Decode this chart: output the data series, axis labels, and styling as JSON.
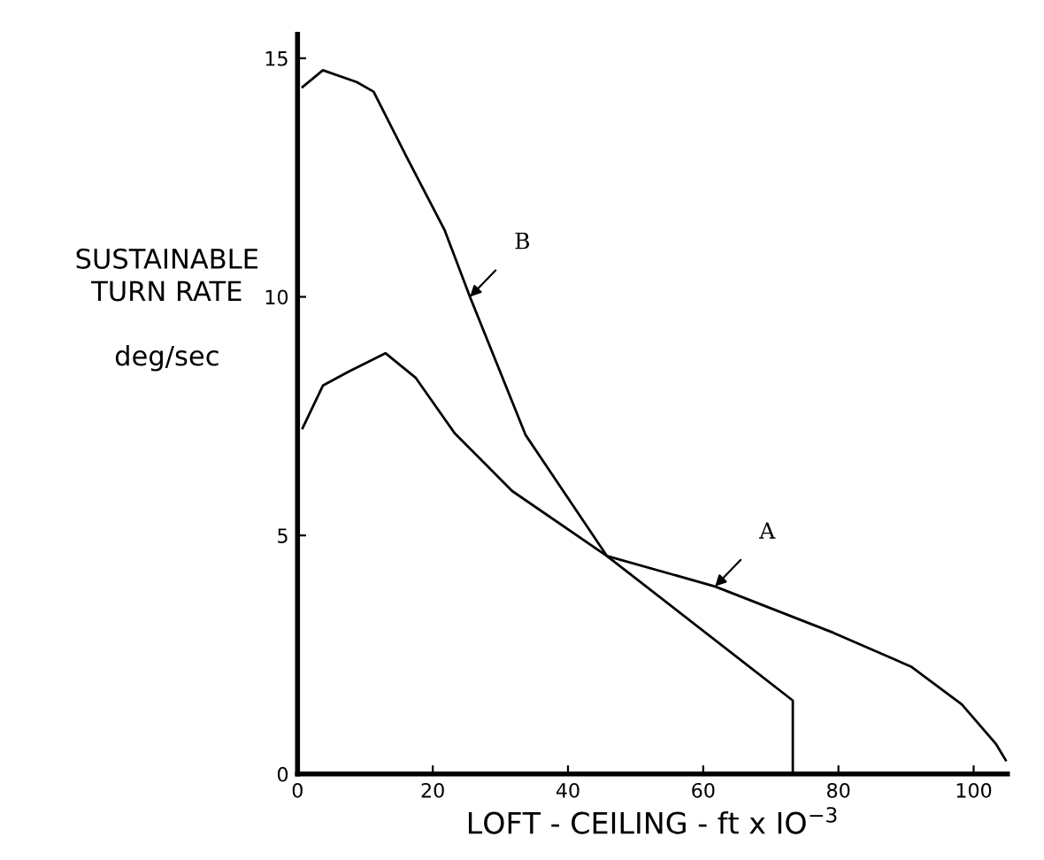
{
  "chart_data": {
    "type": "line",
    "xlabel": "LOFT - CEILING - ft x IO$^{−3}$",
    "ylabel": "SUSTAINABLE\nTURN RATE\n\ndeg/sec",
    "xlim": [
      0,
      105
    ],
    "ylim": [
      0,
      15.5
    ],
    "xticks": [
      0,
      20,
      40,
      60,
      80,
      100
    ],
    "yticks": [
      0,
      5,
      10,
      15
    ],
    "grid": false,
    "legend": false,
    "marker": "none",
    "line_style": "solid",
    "series": [
      {
        "name": "A",
        "color": "#000000",
        "x": [
          0.75,
          3.75,
          7.5,
          13,
          17.5,
          23.25,
          31.75,
          45.75,
          61.75,
          79.25,
          90.75,
          98.25,
          103.25,
          104.75
        ],
        "values": [
          7.25,
          8.14,
          8.43,
          8.82,
          8.3,
          7.14,
          5.93,
          4.57,
          3.93,
          2.96,
          2.25,
          1.46,
          0.64,
          0.29
        ]
      },
      {
        "name": "B",
        "color": "#000000",
        "x": [
          0.75,
          3.75,
          8.75,
          11.25,
          16.25,
          21.75,
          25.5,
          33.75,
          45.75,
          73.25,
          73.25
        ],
        "values": [
          14.4,
          14.75,
          14.5,
          14.3,
          12.9,
          11.4,
          10.0,
          7.1,
          4.57,
          1.54,
          0
        ]
      }
    ]
  }
}
